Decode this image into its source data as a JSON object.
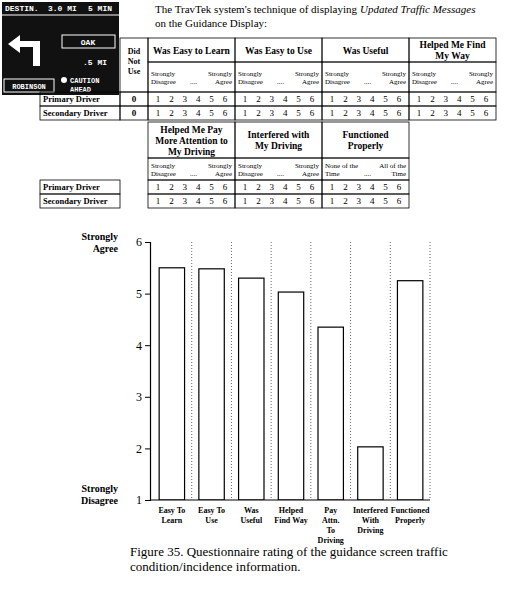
{
  "header": {
    "lead": "The TravTek system's technique of displaying",
    "emphasis": "Updated Traffic Messages",
    "tail": "on the Guidance Display:"
  },
  "display": {
    "destination": "DESTIN.",
    "distance": "3.0 MI",
    "time": "5 MIN",
    "street": "OAK",
    "street_distance": ".5 MI",
    "cross_street": "ROBINSON",
    "caution": [
      "CAUTION",
      "AHEAD"
    ]
  },
  "questionnaire": {
    "row_labels": [
      "Primary Driver",
      "Secondary Driver"
    ],
    "did_not_use": {
      "header": "Did Not Use",
      "values": [
        0,
        0
      ]
    },
    "dots": "....",
    "items": [
      {
        "header": "Was Easy to Learn",
        "low": "Strongly Disagree",
        "high": "Strongly Agree",
        "scale": [
          1,
          2,
          3,
          4,
          5,
          6
        ]
      },
      {
        "header": "Was Easy to Use",
        "low": "Strongly Disagree",
        "high": "Strongly Agree",
        "scale": [
          1,
          2,
          3,
          4,
          5,
          6
        ]
      },
      {
        "header": "Was Useful",
        "low": "Strongly Disagree",
        "high": "Strongly Agree",
        "scale": [
          1,
          2,
          3,
          4,
          5,
          6
        ]
      },
      {
        "header": "Helped Me Find My Way",
        "low": "Strongly Disagree",
        "high": "Strongly Agree",
        "scale": [
          1,
          2,
          3,
          4,
          5,
          6
        ]
      },
      {
        "header": "Helped Me Pay More Attention to My Driving",
        "low": "Strongly Disagree",
        "high": "Strongly Agree",
        "scale": [
          1,
          2,
          3,
          4,
          5,
          6
        ]
      },
      {
        "header": "Interfered with My Driving",
        "low": "Strongly Disagree",
        "high": "Strongly Agree",
        "scale": [
          1,
          2,
          3,
          4,
          5,
          6
        ]
      },
      {
        "header": "Functioned Properly",
        "low": "None of the Time",
        "high": "All of the Time",
        "scale": [
          1,
          2,
          3,
          4,
          5,
          6
        ]
      }
    ]
  },
  "chart_data": {
    "type": "bar",
    "title": "Figure 35. Questionnaire rating of the guidance screen traffic condition/incidence information.",
    "categories": [
      "Easy To\nLearn",
      "Easy To\nUse",
      "Was\nUseful",
      "Helped\nFind Way",
      "Pay\nAttn.\nTo\nDriving",
      "Interfered\nWith\nDriving",
      "Functioned\nProperly"
    ],
    "values": [
      5.5,
      5.48,
      5.3,
      5.03,
      4.35,
      2.03,
      5.25
    ],
    "color": "#ffffff",
    "ylim": [
      1,
      6
    ],
    "yticks": [
      1,
      2,
      3,
      4,
      5,
      6
    ],
    "annotations": [
      "Strongly Agree",
      "Strongly Disagree"
    ],
    "grid": false
  }
}
